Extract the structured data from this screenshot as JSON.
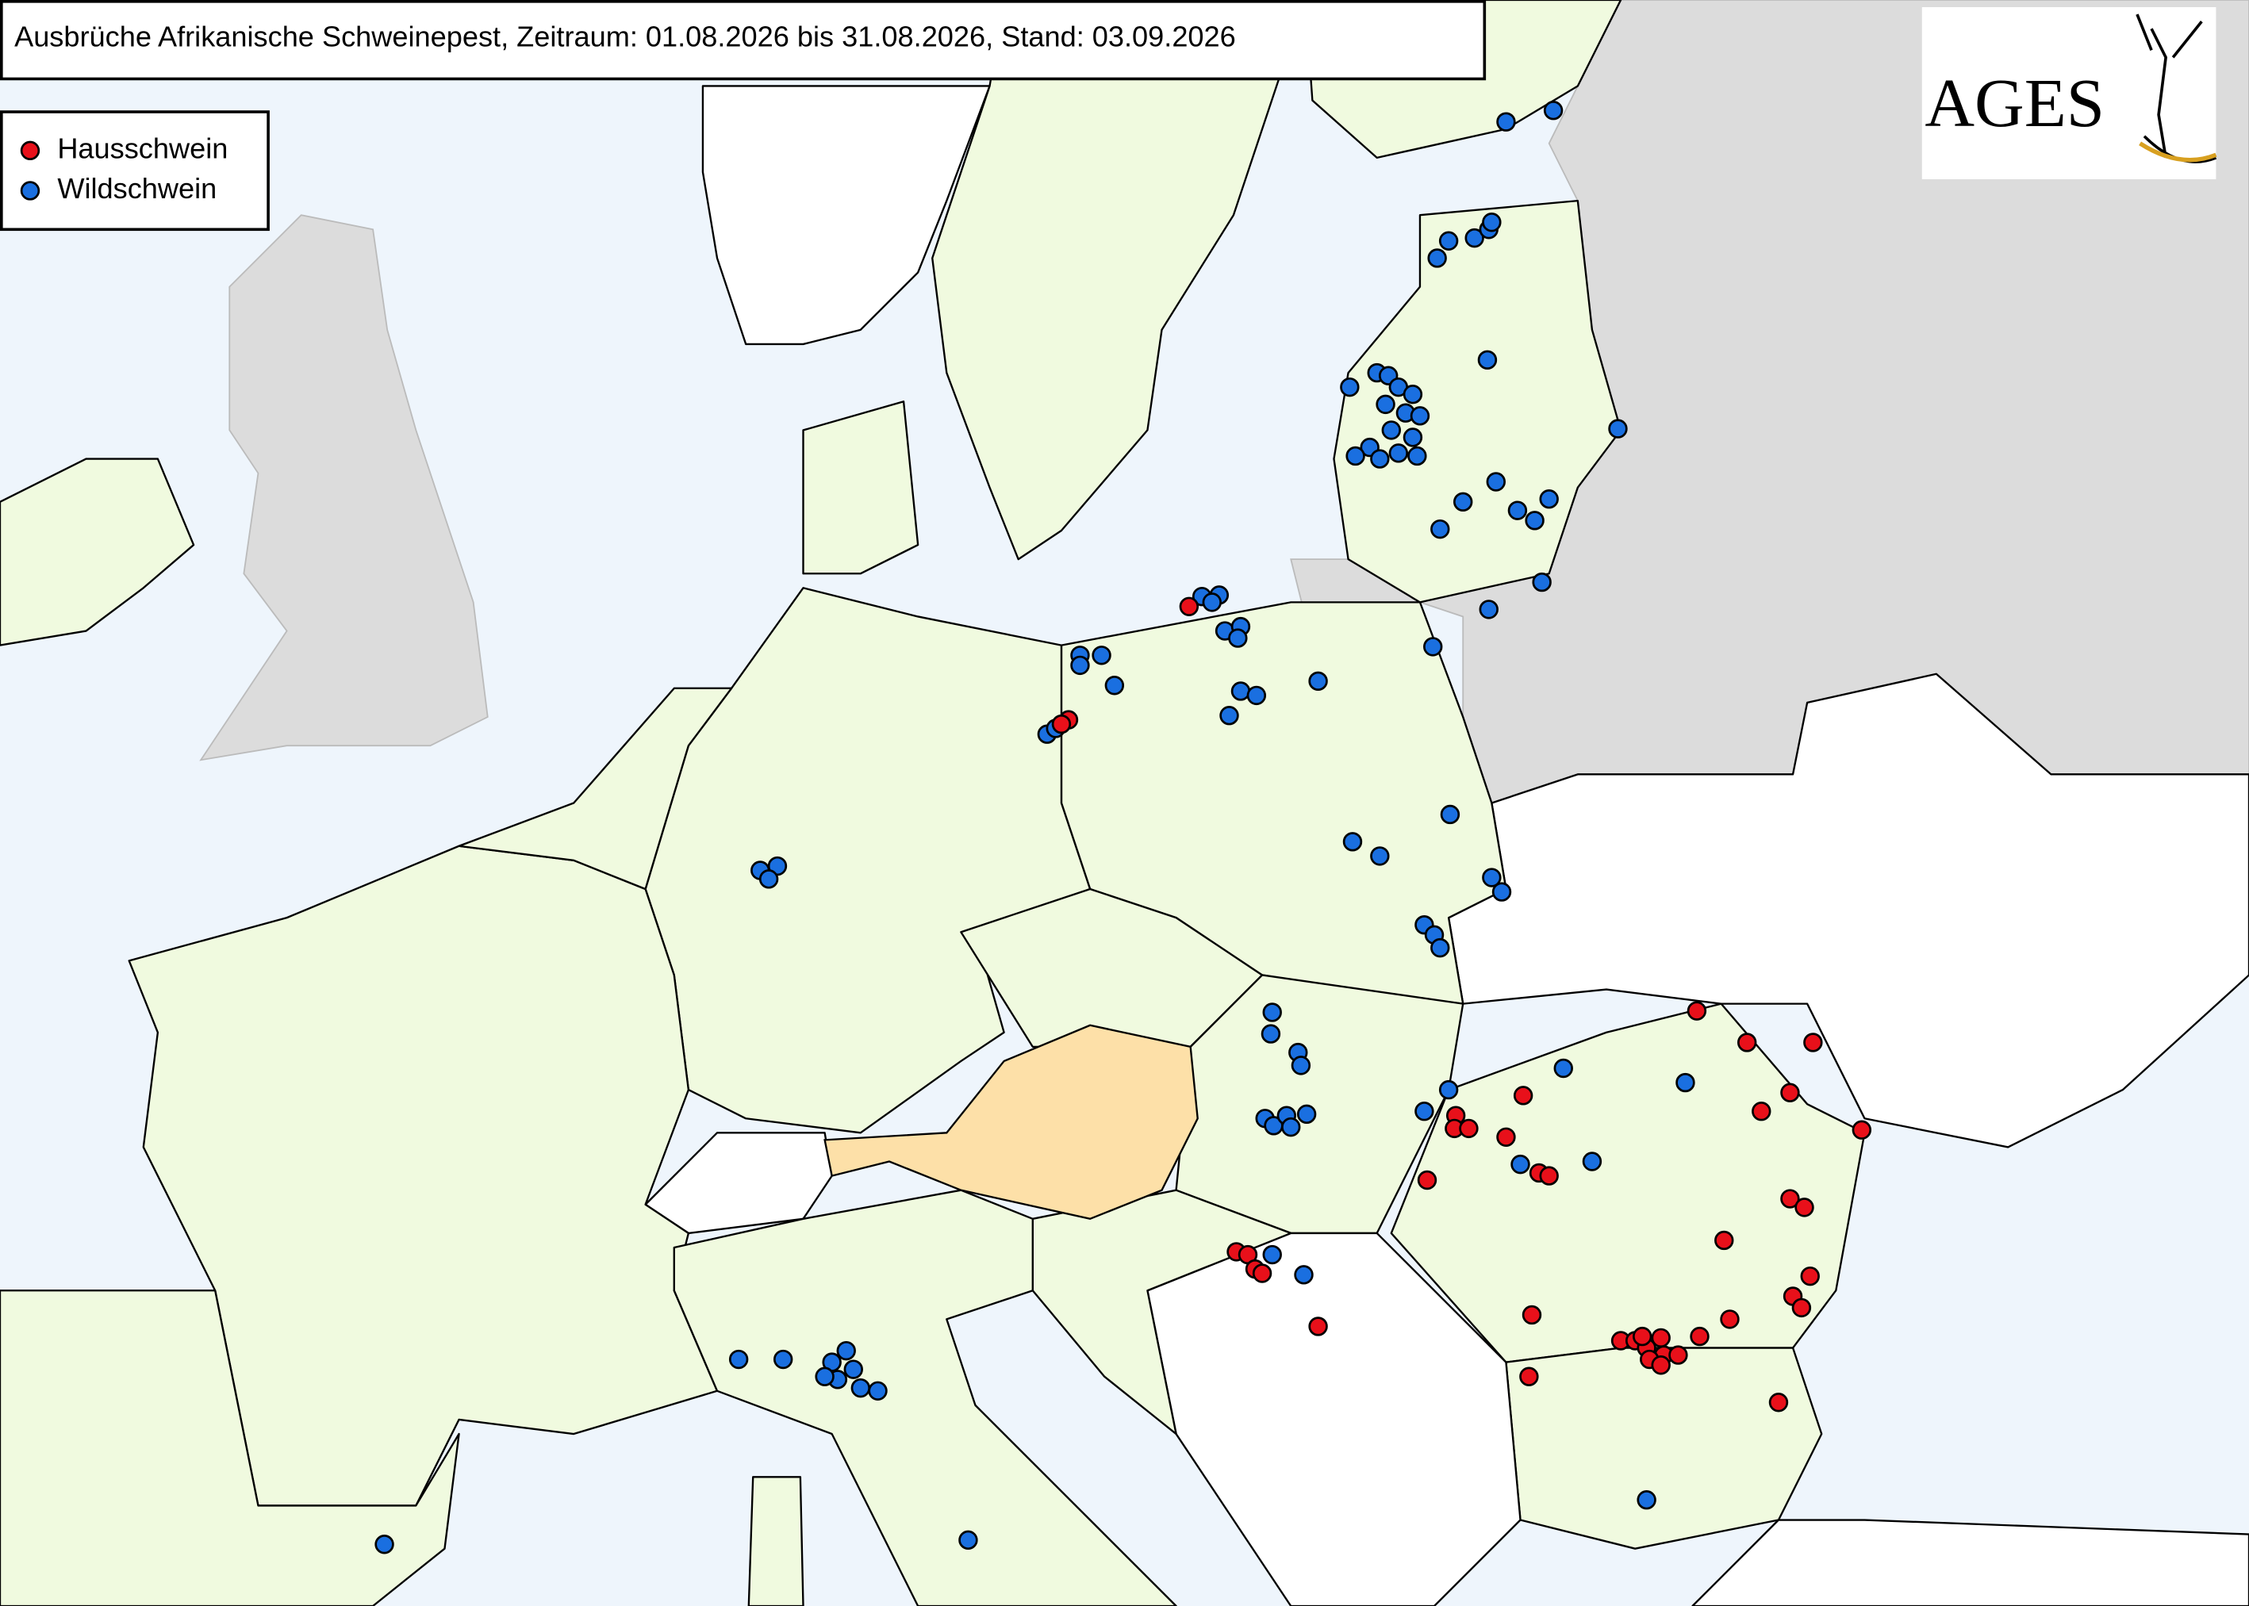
{
  "header": {
    "title": "Ausbrüche Afrikanische Schweinepest, Zeitraum: 01.08.2026 bis 31.08.2026, Stand: 03.09.2026"
  },
  "legend": {
    "items": [
      "Hausschwein",
      "Wildschwein"
    ]
  },
  "logo": {
    "text": "AGES"
  }
}
